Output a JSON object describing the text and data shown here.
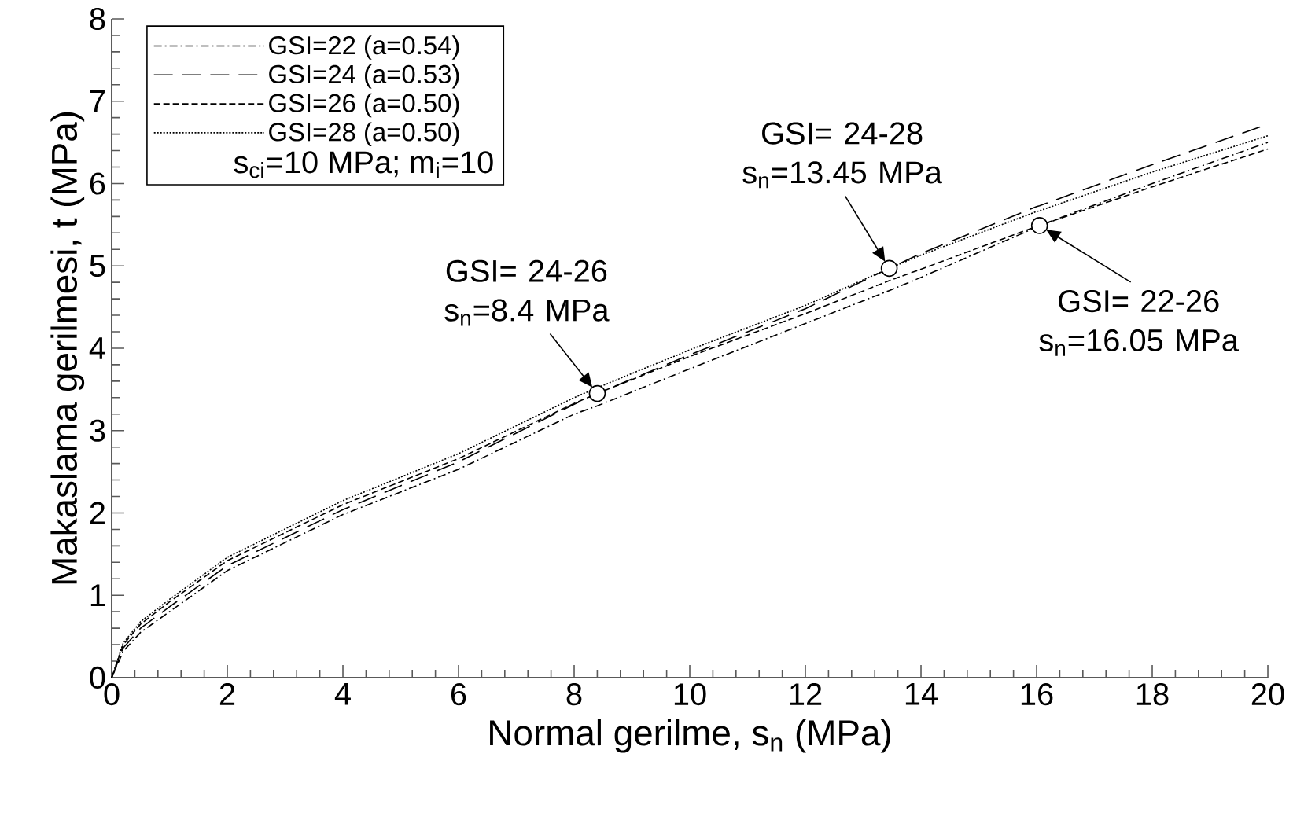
{
  "chart_data": {
    "type": "line",
    "xlabel": "Normal gerilme, s$_{n}$ (MPa)",
    "ylabel": "Makaslama gerilmesi, t (MPa)",
    "x": [
      0,
      0.2,
      0.5,
      1,
      2,
      4,
      6,
      8,
      8.4,
      10,
      12,
      13.45,
      14,
      16,
      16.05,
      18,
      20
    ],
    "series": [
      {
        "name": "GSI=22 (a=0.54)",
        "color": "#000000",
        "line_style": "dashdot",
        "values": [
          0,
          0.32,
          0.55,
          0.8,
          1.3,
          1.98,
          2.53,
          3.2,
          3.3,
          3.75,
          4.3,
          4.7,
          4.86,
          5.47,
          5.49,
          6.0,
          6.5
        ]
      },
      {
        "name": "GSI=24 (a=0.53)",
        "color": "#000000",
        "line_style": "longdash",
        "values": [
          0,
          0.36,
          0.6,
          0.86,
          1.36,
          2.04,
          2.62,
          3.32,
          3.45,
          3.92,
          4.48,
          4.97,
          5.15,
          5.72,
          5.73,
          6.23,
          6.72
        ]
      },
      {
        "name": "GSI=26 (a=0.50)",
        "color": "#000000",
        "line_style": "dashed",
        "values": [
          0,
          0.4,
          0.65,
          0.92,
          1.42,
          2.1,
          2.66,
          3.33,
          3.45,
          3.9,
          4.42,
          4.82,
          4.96,
          5.48,
          5.49,
          5.96,
          6.42
        ]
      },
      {
        "name": "GSI=28 (a=0.50)",
        "color": "#000000",
        "line_style": "dotted",
        "values": [
          0,
          0.42,
          0.68,
          0.95,
          1.46,
          2.15,
          2.72,
          3.4,
          3.52,
          3.98,
          4.52,
          4.97,
          5.13,
          5.66,
          5.67,
          6.14,
          6.58
        ]
      }
    ],
    "annotations": [
      {
        "text": "GSI= 24-26 s$_{n}$=8.4 MPa",
        "x": 8.4,
        "y": 3.45
      },
      {
        "text": "GSI= 24-28 s$_{n}$=13.45 MPa",
        "x": 13.45,
        "y": 4.97
      },
      {
        "text": "GSI= 22-26 s$_{n}$=16.05 MPa",
        "x": 16.05,
        "y": 5.49
      },
      "s$_{ci}$=10 MPa;  m$_{i}$=10"
    ],
    "xlim": [
      0,
      20
    ],
    "ylim": [
      0,
      8
    ],
    "xticks": [
      0,
      2,
      4,
      6,
      8,
      10,
      12,
      14,
      16,
      18,
      20
    ],
    "yticks": [
      0,
      1,
      2,
      3,
      4,
      5,
      6,
      7,
      8
    ],
    "grid": false,
    "legend": "top left",
    "marker": "none"
  }
}
